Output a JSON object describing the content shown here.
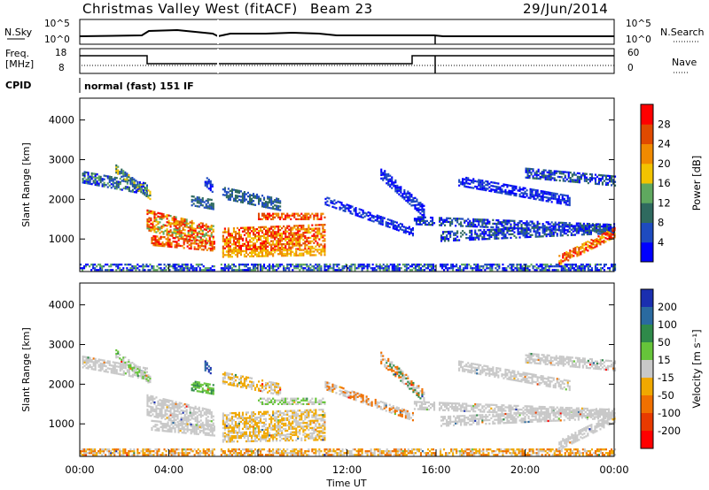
{
  "header": {
    "title": "Christmas Valley West (fitACF)",
    "beam": "Beam 23",
    "date": "29/Jun/2014"
  },
  "noise_panel": {
    "left_label": "N.Sky",
    "right_label": "N.Search",
    "left_ticks": [
      "10^5",
      "10^0"
    ],
    "right_ticks": [
      "10^5",
      "10^0"
    ]
  },
  "freq_panel": {
    "left_label_1": "Freq.",
    "left_label_2": "[MHz]",
    "right_label": "Nave",
    "left_ticks": [
      "18",
      "8"
    ],
    "right_ticks": [
      "60",
      "0"
    ]
  },
  "cpid": {
    "label": "CPID",
    "value": "normal (fast) 151 IF"
  },
  "chart_data": [
    {
      "type": "heatmap",
      "title": "Power [dB]",
      "xlabel": "",
      "ylabel": "Slant Range [km]",
      "ylim": [
        180,
        4550
      ],
      "xlim_hours": [
        0,
        24
      ],
      "y_ticks": [
        1000,
        2000,
        3000,
        4000
      ],
      "colorbar": {
        "label": "Power [dB]",
        "ticks": [
          "4",
          "8",
          "12",
          "16",
          "20",
          "24",
          "28"
        ],
        "colors": [
          "#0000ff",
          "#1e4bbf",
          "#2f6a5f",
          "#5fa85f",
          "#f2c300",
          "#f08a00",
          "#e04a00",
          "#ff0000"
        ]
      }
    },
    {
      "type": "heatmap",
      "title": "Velocity [m s-1]",
      "xlabel": "Time UT",
      "ylabel": "Slant Range [km]",
      "ylim": [
        180,
        4550
      ],
      "xlim_hours": [
        0,
        24
      ],
      "y_ticks": [
        1000,
        2000,
        3000,
        4000
      ],
      "x_ticks": [
        "00:00",
        "04:00",
        "08:00",
        "12:00",
        "16:00",
        "20:00",
        "00:00"
      ],
      "colorbar": {
        "label": "Velocity [m s⁻¹]",
        "ticks": [
          "200",
          "100",
          "50",
          "15",
          "-15",
          "-50",
          "-100",
          "-200"
        ],
        "colors": [
          "#1a2fb0",
          "#2a6aa0",
          "#2f8a4a",
          "#66c43a",
          "#c8c8c8",
          "#f0a800",
          "#f07000",
          "#e83a00",
          "#ff0000"
        ]
      }
    }
  ]
}
